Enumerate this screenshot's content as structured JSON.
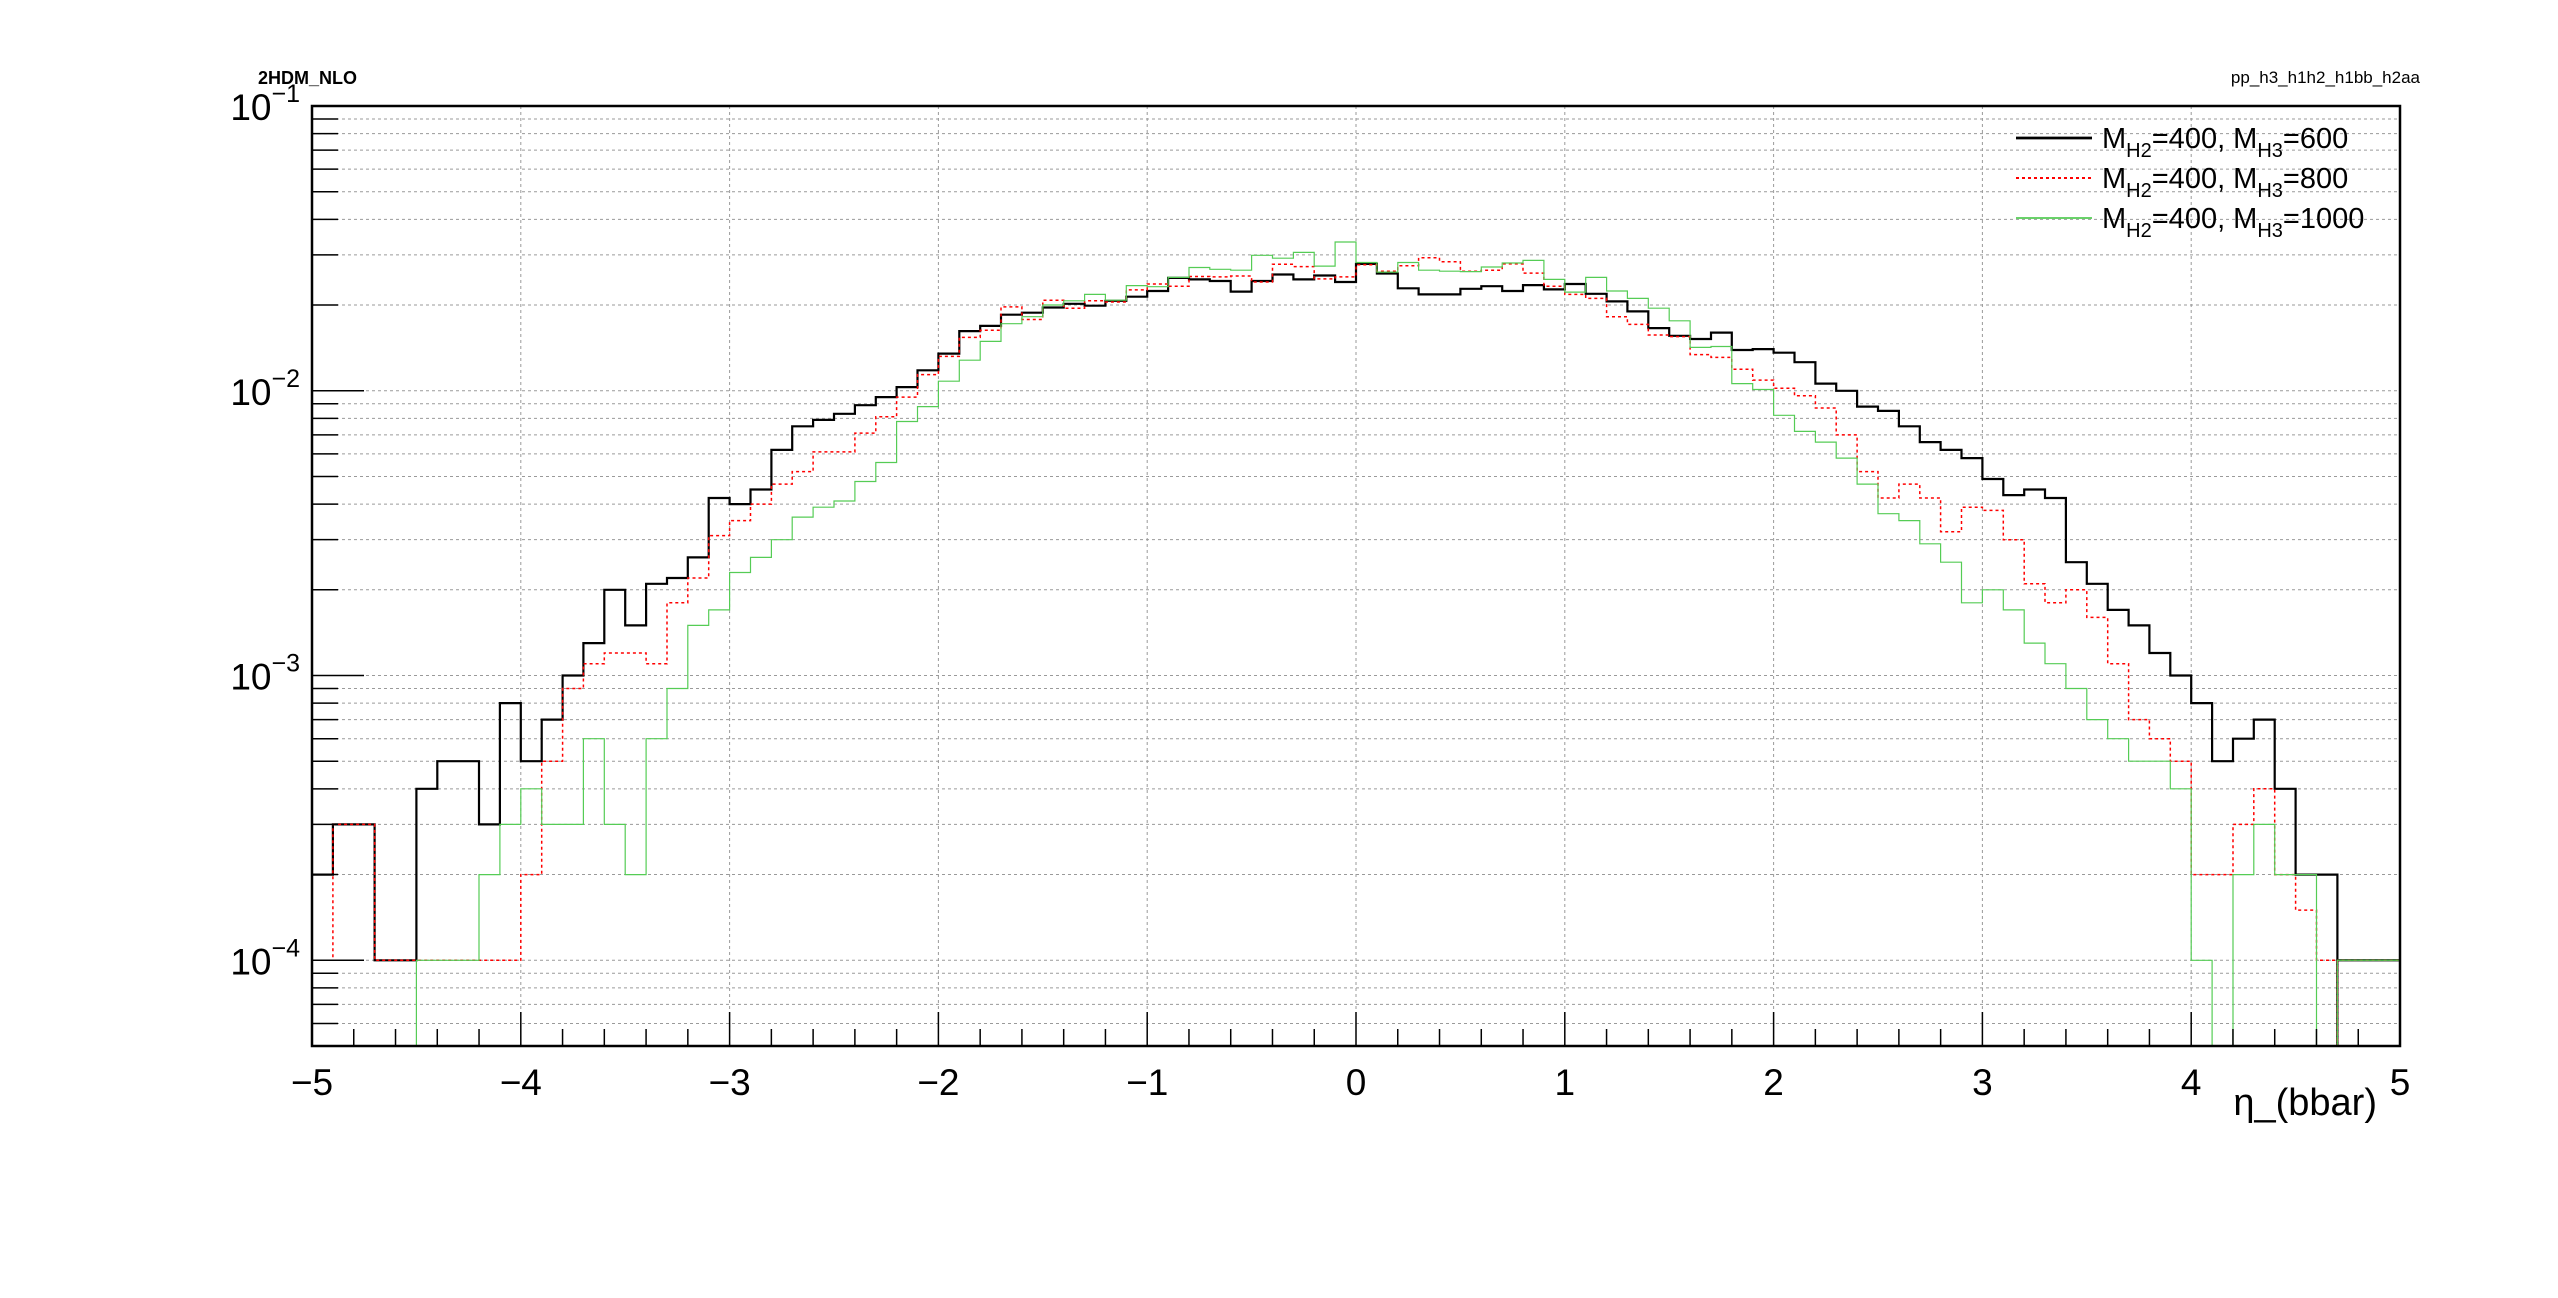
{
  "header": {
    "left_label": "2HDM_NLO",
    "right_label": "pp_h3_h1h2_h1bb_h2aa"
  },
  "chart_data": {
    "type": "line",
    "style": "step-histogram",
    "title": "",
    "xlabel": "η_(bbar)",
    "ylabel": "",
    "xlim": [
      -5,
      5
    ],
    "ylim": [
      5e-05,
      0.1
    ],
    "yscale": "log",
    "grid": true,
    "legend_position": "top-right",
    "bin_width": 0.2,
    "x_ticks": [
      "−5",
      "−4",
      "−3",
      "−2",
      "−1",
      "0",
      "1",
      "2",
      "3",
      "4",
      "5"
    ],
    "y_ticks": [
      {
        "value": 0.0001,
        "base": "10",
        "exp": "−4"
      },
      {
        "value": 0.001,
        "base": "10",
        "exp": "−3"
      },
      {
        "value": 0.01,
        "base": "10",
        "exp": "−2"
      },
      {
        "value": 0.1,
        "base": "10",
        "exp": "−1"
      }
    ],
    "series": [
      {
        "legend": {
          "m": "M",
          "sub1": "H2",
          "mid": "=400, M",
          "sub2": "H3",
          "tail": "=600"
        },
        "color": "#000000",
        "dash": "none",
        "width": 2.2,
        "bin_edges": [
          -5.0,
          -4.9,
          -4.7,
          -4.5,
          -4.4,
          -4.3,
          -4.2,
          -4.1,
          -4.0,
          -3.9,
          -3.8,
          -3.7,
          -3.6,
          -3.5,
          -3.4,
          -3.3,
          -3.2,
          -3.1,
          -3.0,
          -2.9,
          -2.8,
          -2.7,
          -2.6,
          -2.5,
          -2.4,
          -2.3,
          -2.2,
          -2.1,
          -2.0,
          -1.9,
          -1.8,
          -1.7,
          -1.6,
          -1.5,
          -1.4,
          -1.3,
          -1.2,
          -1.1,
          -1.0,
          -0.9,
          -0.8,
          -0.7,
          -0.6,
          -0.5,
          -0.4,
          -0.3,
          -0.2,
          -0.1,
          0.0,
          0.1,
          0.2,
          0.3,
          0.4,
          0.5,
          0.6,
          0.7,
          0.8,
          0.9,
          1.0,
          1.1,
          1.2,
          1.3,
          1.4,
          1.5,
          1.6,
          1.7,
          1.8,
          1.9,
          2.0,
          2.1,
          2.2,
          2.3,
          2.4,
          2.5,
          2.6,
          2.7,
          2.8,
          2.9,
          3.0,
          3.1,
          3.2,
          3.3,
          3.4,
          3.5,
          3.6,
          3.7,
          3.8,
          3.9,
          4.0,
          4.1,
          4.2,
          4.3,
          4.4,
          4.5,
          4.6,
          4.7
        ],
        "values": [
          0.0002,
          0.0003,
          0.0001,
          0.0004,
          0.0005,
          0.0005,
          0.0003,
          0.0008,
          0.0005,
          0.0007,
          0.001,
          0.0013,
          0.002,
          0.0015,
          0.0021,
          0.0022,
          0.0026,
          0.0042,
          0.004,
          0.0045,
          0.0062,
          0.0075,
          0.0079,
          0.0083,
          0.0089,
          0.0095,
          0.0103,
          0.0118,
          0.0135,
          0.0162,
          0.0169,
          0.0185,
          0.0188,
          0.0196,
          0.0202,
          0.0199,
          0.0207,
          0.0214,
          0.0224,
          0.0249,
          0.0246,
          0.0243,
          0.0223,
          0.0243,
          0.0256,
          0.0246,
          0.0254,
          0.0241,
          0.0279,
          0.0258,
          0.0229,
          0.0218,
          0.0218,
          0.0228,
          0.0233,
          0.0224,
          0.0235,
          0.0227,
          0.0237,
          0.0219,
          0.0206,
          0.019,
          0.0166,
          0.0156,
          0.0152,
          0.016,
          0.0139,
          0.014,
          0.0136,
          0.0126,
          0.0106,
          0.01,
          0.0088,
          0.0085,
          0.0075,
          0.0066,
          0.0062,
          0.0058,
          0.0049,
          0.0043,
          0.0045,
          0.0042,
          0.0025,
          0.0021,
          0.0017,
          0.0015,
          0.0012,
          0.001,
          0.0008,
          0.0005,
          0.0006,
          0.0007,
          0.0004,
          0.0002,
          0.0002,
          4e-05
        ],
        "tail": {
          "from": 4.7,
          "to": 5.0
        }
      },
      {
        "legend": {
          "m": "M",
          "sub1": "H2",
          "mid": "=400, M",
          "sub2": "H3",
          "tail": "=800"
        },
        "color": "#ff0000",
        "dash": "3,3",
        "width": 1.5,
        "bin_edges": [
          -5.0,
          -4.9,
          -4.7,
          -4.5,
          -4.4,
          -4.3,
          -4.2,
          -4.1,
          -4.0,
          -3.9,
          -3.8,
          -3.7,
          -3.6,
          -3.5,
          -3.4,
          -3.3,
          -3.2,
          -3.1,
          -3.0,
          -2.9,
          -2.8,
          -2.7,
          -2.6,
          -2.5,
          -2.4,
          -2.3,
          -2.2,
          -2.1,
          -2.0,
          -1.9,
          -1.8,
          -1.7,
          -1.6,
          -1.5,
          -1.4,
          -1.3,
          -1.2,
          -1.1,
          -1.0,
          -0.9,
          -0.8,
          -0.7,
          -0.6,
          -0.5,
          -0.4,
          -0.3,
          -0.2,
          -0.1,
          0.0,
          0.1,
          0.2,
          0.3,
          0.4,
          0.5,
          0.6,
          0.7,
          0.8,
          0.9,
          1.0,
          1.1,
          1.2,
          1.3,
          1.4,
          1.5,
          1.6,
          1.7,
          1.8,
          1.9,
          2.0,
          2.1,
          2.2,
          2.3,
          2.4,
          2.5,
          2.6,
          2.7,
          2.8,
          2.9,
          3.0,
          3.1,
          3.2,
          3.3,
          3.4,
          3.5,
          3.6,
          3.7,
          3.8,
          3.9,
          4.0,
          4.1,
          4.2,
          4.3,
          4.4,
          4.5,
          4.6,
          4.7
        ],
        "values": [
          0.0001,
          0.0003,
          0.0001,
          0.0001,
          0.0001,
          0.0001,
          0.0001,
          0.0001,
          0.0002,
          0.0005,
          0.0009,
          0.0011,
          0.0012,
          0.0012,
          0.0011,
          0.0018,
          0.0022,
          0.0031,
          0.0035,
          0.004,
          0.0047,
          0.0052,
          0.0061,
          0.0061,
          0.0071,
          0.0081,
          0.0095,
          0.0114,
          0.0132,
          0.0154,
          0.0163,
          0.0197,
          0.0178,
          0.0208,
          0.0195,
          0.0207,
          0.0205,
          0.0226,
          0.0237,
          0.0233,
          0.0252,
          0.0251,
          0.0253,
          0.0241,
          0.0278,
          0.0273,
          0.0247,
          0.0251,
          0.0277,
          0.0263,
          0.0275,
          0.0293,
          0.0284,
          0.0263,
          0.0265,
          0.0279,
          0.0259,
          0.0233,
          0.0218,
          0.0211,
          0.0182,
          0.0171,
          0.0157,
          0.0155,
          0.0134,
          0.0131,
          0.0119,
          0.0109,
          0.0102,
          0.0096,
          0.0087,
          0.007,
          0.0052,
          0.0042,
          0.0047,
          0.0042,
          0.0032,
          0.0039,
          0.0038,
          0.003,
          0.0021,
          0.0018,
          0.002,
          0.0016,
          0.0011,
          0.0007,
          0.0006,
          0.0005,
          0.0002,
          0.0002,
          0.0003,
          0.0004,
          0.0002,
          0.00015,
          0.0001,
          4e-05
        ],
        "tail": {
          "from": 4.7,
          "to": 5.0
        }
      },
      {
        "legend": {
          "m": "M",
          "sub1": "H2",
          "mid": "=400, M",
          "sub2": "H3",
          "tail": "=1000"
        },
        "color": "#55cc55",
        "dash": "none",
        "width": 1.2,
        "bin_edges": [
          -5.0,
          -4.9,
          -4.7,
          -4.5,
          -4.4,
          -4.3,
          -4.2,
          -4.1,
          -4.0,
          -3.9,
          -3.8,
          -3.7,
          -3.6,
          -3.5,
          -3.4,
          -3.3,
          -3.2,
          -3.1,
          -3.0,
          -2.9,
          -2.8,
          -2.7,
          -2.6,
          -2.5,
          -2.4,
          -2.3,
          -2.2,
          -2.1,
          -2.0,
          -1.9,
          -1.8,
          -1.7,
          -1.6,
          -1.5,
          -1.4,
          -1.3,
          -1.2,
          -1.1,
          -1.0,
          -0.9,
          -0.8,
          -0.7,
          -0.6,
          -0.5,
          -0.4,
          -0.3,
          -0.2,
          -0.1,
          0.0,
          0.1,
          0.2,
          0.3,
          0.4,
          0.5,
          0.6,
          0.7,
          0.8,
          0.9,
          1.0,
          1.1,
          1.2,
          1.3,
          1.4,
          1.5,
          1.6,
          1.7,
          1.8,
          1.9,
          2.0,
          2.1,
          2.2,
          2.3,
          2.4,
          2.5,
          2.6,
          2.7,
          2.8,
          2.9,
          3.0,
          3.1,
          3.2,
          3.3,
          3.4,
          3.5,
          3.6,
          3.7,
          3.8,
          3.9,
          4.0,
          4.1,
          4.2,
          4.3,
          4.4,
          4.5,
          4.6,
          4.7
        ],
        "values": [
          4e-05,
          4e-05,
          4e-05,
          0.0001,
          0.0001,
          0.0001,
          0.0002,
          0.0003,
          0.0004,
          0.0003,
          0.0003,
          0.0006,
          0.0003,
          0.0002,
          0.0006,
          0.0009,
          0.0015,
          0.0017,
          0.0023,
          0.0026,
          0.003,
          0.0036,
          0.0039,
          0.0041,
          0.0048,
          0.0056,
          0.0078,
          0.0088,
          0.0108,
          0.0128,
          0.0149,
          0.0172,
          0.0182,
          0.02,
          0.0207,
          0.0218,
          0.0208,
          0.0234,
          0.0232,
          0.025,
          0.0271,
          0.0267,
          0.0265,
          0.0299,
          0.0292,
          0.0306,
          0.0274,
          0.0333,
          0.0282,
          0.0261,
          0.0282,
          0.0265,
          0.0263,
          0.0262,
          0.0272,
          0.0281,
          0.0287,
          0.0246,
          0.0222,
          0.025,
          0.0224,
          0.0211,
          0.0195,
          0.0176,
          0.0142,
          0.0143,
          0.0106,
          0.0101,
          0.0082,
          0.0072,
          0.0066,
          0.0058,
          0.0047,
          0.0037,
          0.0035,
          0.0029,
          0.0025,
          0.0018,
          0.002,
          0.0017,
          0.0013,
          0.0011,
          0.0009,
          0.0007,
          0.0006,
          0.0005,
          0.0005,
          0.0004,
          0.0001,
          4e-05,
          0.0002,
          0.0003,
          0.0002,
          0.0002,
          4e-05,
          4e-05
        ],
        "tail": {
          "from": 4.7,
          "to": 5.0
        }
      }
    ]
  }
}
